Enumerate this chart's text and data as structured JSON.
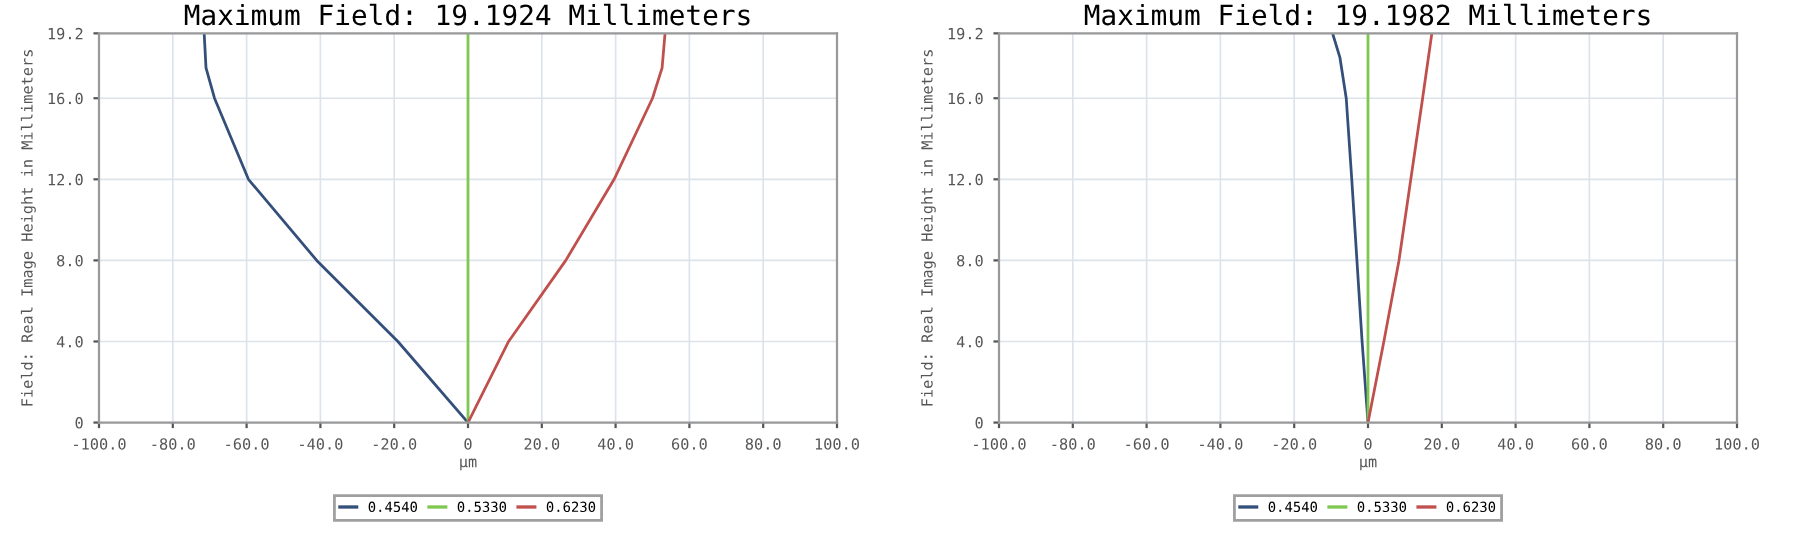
{
  "chart_data": [
    {
      "type": "line",
      "title": "Maximum Field: 19.1924 Millimeters",
      "xlabel": "µm",
      "ylabel": "Field: Real Image Height in Millimeters",
      "xlim": [
        -100,
        100
      ],
      "xticks": [
        {
          "value": -100,
          "label": "-100.0"
        },
        {
          "value": -80,
          "label": "-80.0"
        },
        {
          "value": -60,
          "label": "-60.0"
        },
        {
          "value": -40,
          "label": "-40.0"
        },
        {
          "value": -20,
          "label": "-20.0"
        },
        {
          "value": 0,
          "label": "0"
        },
        {
          "value": 20,
          "label": "20.0"
        },
        {
          "value": 40,
          "label": "40.0"
        },
        {
          "value": 60,
          "label": "60.0"
        },
        {
          "value": 80,
          "label": "80.0"
        },
        {
          "value": 100,
          "label": "100.0"
        }
      ],
      "ylim": [
        0,
        19.2
      ],
      "yticks": [
        0,
        {
          "value": 4,
          "label": "4.0"
        },
        {
          "value": 8,
          "label": "8.0"
        },
        {
          "value": 12,
          "label": "12.0"
        },
        {
          "value": 16,
          "label": "16.0"
        },
        {
          "value": 19.2,
          "label": "19.2"
        }
      ],
      "grid": true,
      "legend": "bottom",
      "series": [
        {
          "name": "0.4540",
          "color": "#34507a",
          "x": [
            0,
            -19,
            -41,
            -59.5,
            -68.7,
            -71,
            -71.5
          ],
          "values": [
            0,
            4,
            8,
            12,
            16,
            17.5,
            19.2
          ]
        },
        {
          "name": "0.5330",
          "color": "#7ec850",
          "x": [
            0,
            0
          ],
          "values": [
            0,
            19.2
          ]
        },
        {
          "name": "0.6230",
          "color": "#c0504d",
          "x": [
            0,
            11,
            26.5,
            39.6,
            50,
            52.6,
            53.4
          ],
          "values": [
            0,
            4,
            8,
            12,
            16,
            17.5,
            19.2
          ]
        }
      ]
    },
    {
      "type": "line",
      "title": "Maximum Field: 19.1982 Millimeters",
      "xlabel": "µm",
      "ylabel": "Field: Real Image Height in Millimeters",
      "xlim": [
        -100,
        100
      ],
      "xticks": [
        {
          "value": -100,
          "label": "-100.0"
        },
        {
          "value": -80,
          "label": "-80.0"
        },
        {
          "value": -60,
          "label": "-60.0"
        },
        {
          "value": -40,
          "label": "-40.0"
        },
        {
          "value": -20,
          "label": "-20.0"
        },
        {
          "value": 0,
          "label": "0"
        },
        {
          "value": 20,
          "label": "20.0"
        },
        {
          "value": 40,
          "label": "40.0"
        },
        {
          "value": 60,
          "label": "60.0"
        },
        {
          "value": 80,
          "label": "80.0"
        },
        {
          "value": 100,
          "label": "100.0"
        }
      ],
      "ylim": [
        0,
        19.2
      ],
      "yticks": [
        0,
        {
          "value": 4,
          "label": "4.0"
        },
        {
          "value": 8,
          "label": "8.0"
        },
        {
          "value": 12,
          "label": "12.0"
        },
        {
          "value": 16,
          "label": "16.0"
        },
        {
          "value": 19.2,
          "label": "19.2"
        }
      ],
      "grid": true,
      "legend": "bottom",
      "series": [
        {
          "name": "0.4540",
          "color": "#34507a",
          "x": [
            0,
            -1.6,
            -3,
            -4.4,
            -5.9,
            -7.6,
            -9.6
          ],
          "values": [
            0,
            4,
            8,
            12,
            16,
            18,
            19.2
          ]
        },
        {
          "name": "0.5330",
          "color": "#7ec850",
          "x": [
            0,
            0
          ],
          "values": [
            0,
            19.2
          ]
        },
        {
          "name": "0.6230",
          "color": "#c0504d",
          "x": [
            0,
            4.3,
            8.4,
            11.6,
            14.8,
            17.3
          ],
          "values": [
            0,
            4,
            8,
            12,
            16,
            19.2
          ]
        }
      ]
    }
  ]
}
